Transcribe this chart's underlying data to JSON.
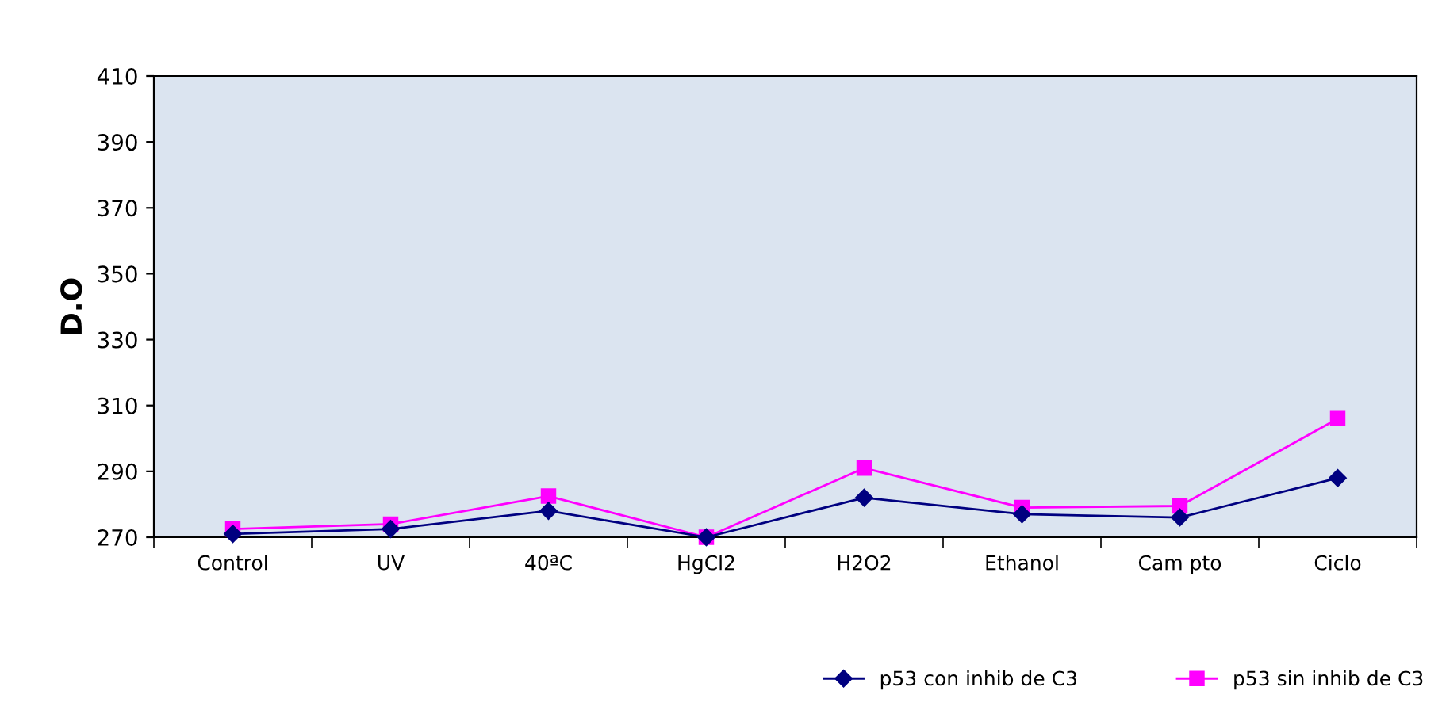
{
  "chart_data": {
    "type": "line",
    "ylabel": "D.O",
    "categories": [
      "Control",
      "UV",
      "40ªC",
      "HgCl2",
      "H2O2",
      "Ethanol",
      "Cam pto",
      "Ciclo"
    ],
    "series": [
      {
        "name": "p53 con inhib de C3",
        "color": "#000080",
        "marker": "diamond",
        "values": [
          271,
          272.5,
          278,
          270,
          282,
          277,
          276,
          288
        ]
      },
      {
        "name": "p53 sin inhib de C3",
        "color": "#ff00ff",
        "marker": "square",
        "values": [
          272.5,
          274,
          282.5,
          270,
          291,
          279,
          279.5,
          306
        ]
      }
    ],
    "ylim": [
      270,
      410
    ],
    "yticks": [
      270,
      290,
      310,
      330,
      350,
      370,
      390,
      410
    ],
    "grid": false,
    "legend": "bottom right"
  }
}
